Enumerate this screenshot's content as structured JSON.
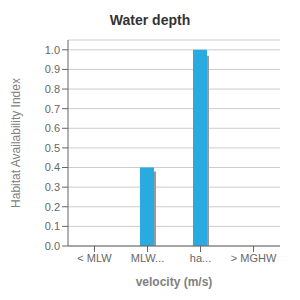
{
  "chart_data": {
    "type": "bar",
    "title": "Water depth",
    "xlabel": "velocity (m/s)",
    "ylabel": "Habitat Availability Index",
    "categories": [
      "< MLW",
      "MLW...",
      "ha...",
      "> MGHW"
    ],
    "series": [
      {
        "color": "#999999",
        "values": [
          0.0,
          0.38,
          0.97,
          0.0
        ]
      },
      {
        "color": "#29ABE2",
        "values": [
          0.0,
          0.4,
          1.0,
          0.0
        ]
      }
    ],
    "ylim": [
      0.0,
      1.05
    ],
    "yticks": [
      {
        "value": 0.0,
        "label": "0.0"
      },
      0.1,
      0.2,
      0.3,
      0.4,
      0.5,
      0.6,
      0.7,
      0.8,
      0.9,
      {
        "value": 1.0,
        "label": "1.0"
      }
    ],
    "grid": true
  }
}
